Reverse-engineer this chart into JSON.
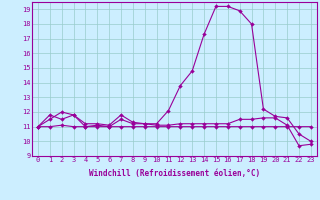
{
  "xlabel": "Windchill (Refroidissement éolien,°C)",
  "bg_color": "#cceeff",
  "line_color": "#990099",
  "grid_color": "#99cccc",
  "x_values": [
    0,
    1,
    2,
    3,
    4,
    5,
    6,
    7,
    8,
    9,
    10,
    11,
    12,
    13,
    14,
    15,
    16,
    17,
    18,
    19,
    20,
    21,
    22,
    23
  ],
  "series": [
    [
      11.0,
      11.8,
      11.5,
      11.8,
      11.0,
      11.1,
      11.0,
      11.5,
      11.2,
      11.2,
      11.1,
      11.1,
      11.2,
      11.2,
      11.2,
      11.2,
      11.2,
      11.5,
      11.5,
      11.6,
      11.6,
      11.1,
      9.7,
      9.8
    ],
    [
      11.0,
      11.0,
      11.1,
      11.0,
      11.0,
      11.0,
      11.0,
      11.0,
      11.0,
      11.0,
      11.0,
      11.0,
      11.0,
      11.0,
      11.0,
      11.0,
      11.0,
      11.0,
      11.0,
      11.0,
      11.0,
      11.0,
      11.0,
      11.0
    ],
    [
      11.0,
      11.5,
      12.0,
      11.8,
      11.2,
      11.2,
      11.1,
      11.8,
      11.3,
      11.2,
      11.2,
      12.1,
      13.8,
      14.8,
      17.3,
      19.2,
      19.2,
      18.9,
      18.0,
      12.2,
      11.7,
      11.6,
      10.5,
      10.0
    ]
  ],
  "xlim": [
    -0.5,
    23.5
  ],
  "ylim": [
    9,
    19.5
  ],
  "yticks": [
    9,
    10,
    11,
    12,
    13,
    14,
    15,
    16,
    17,
    18,
    19
  ],
  "xticks": [
    0,
    1,
    2,
    3,
    4,
    5,
    6,
    7,
    8,
    9,
    10,
    11,
    12,
    13,
    14,
    15,
    16,
    17,
    18,
    19,
    20,
    21,
    22,
    23
  ],
  "tick_fontsize": 5.0,
  "label_fontsize": 5.5,
  "marker_size": 2.0,
  "linewidth": 0.8
}
